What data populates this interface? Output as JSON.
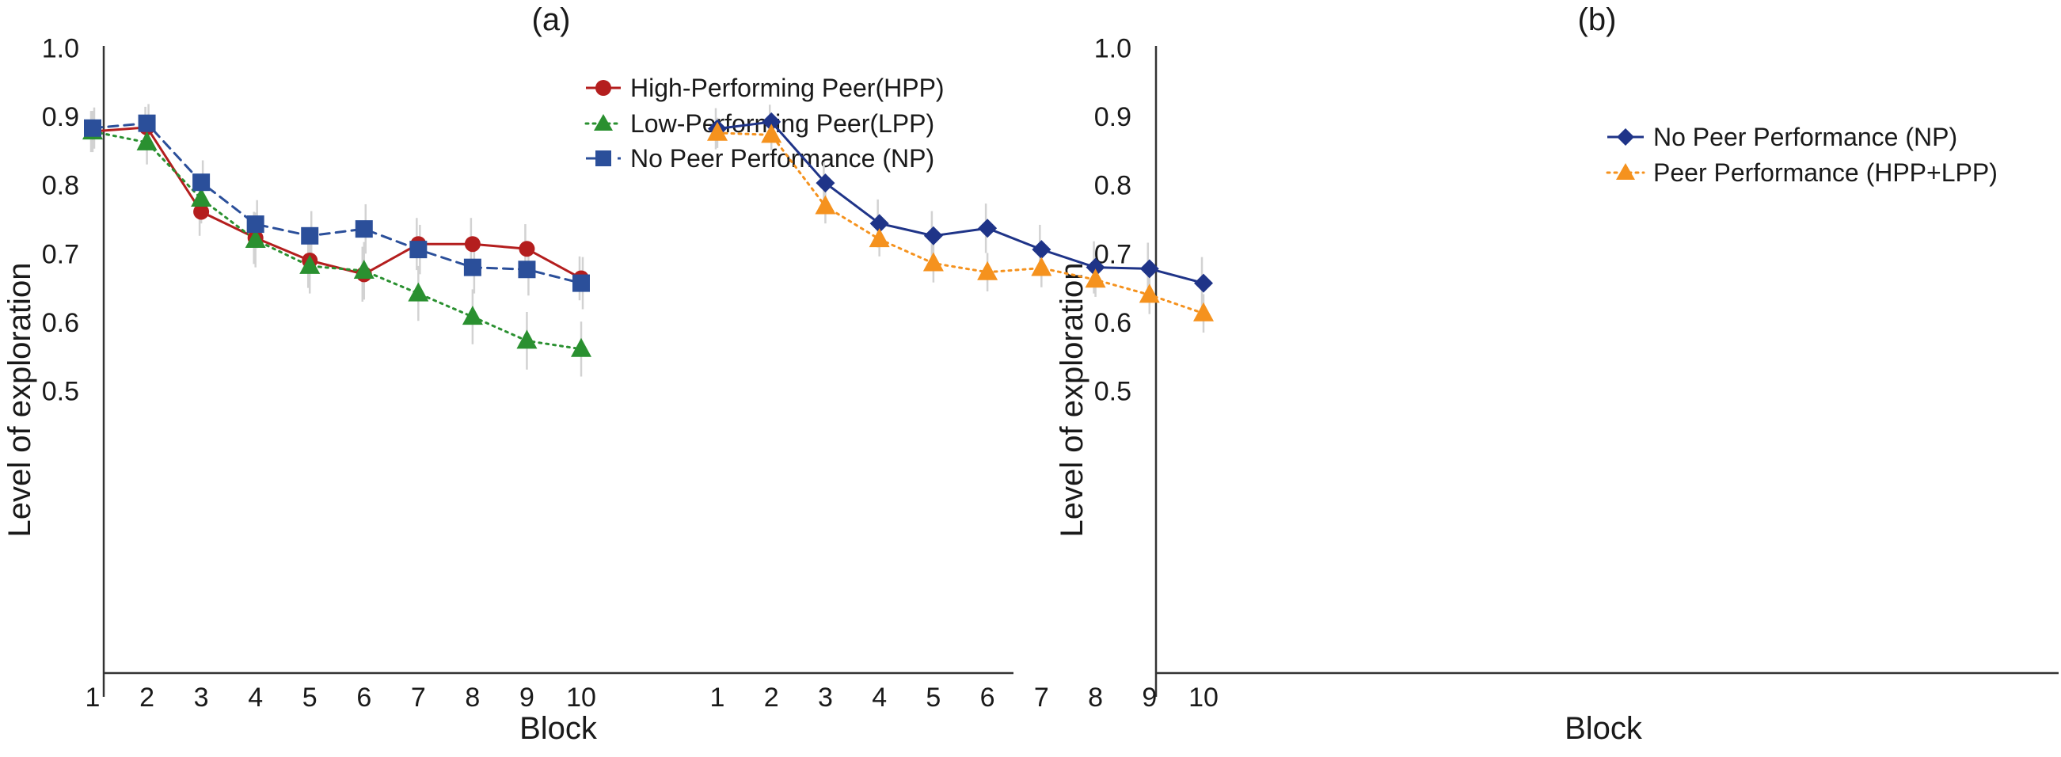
{
  "chart_data": [
    {
      "type": "line",
      "title": "(a)",
      "xlabel": "Block",
      "ylabel": "Level of exploration",
      "x": [
        1,
        2,
        3,
        4,
        5,
        6,
        7,
        8,
        9,
        10
      ],
      "x_tick_labels": [
        "1",
        "2",
        "3",
        "4",
        "5",
        "6",
        "7",
        "8",
        "9",
        "10"
      ],
      "ylim": [
        0.48,
        1.03
      ],
      "y_ticks": [
        0.5,
        0.6,
        0.7,
        0.8,
        0.9,
        1.0
      ],
      "y_tick_labels": [
        "0.5",
        "0.6",
        "0.7",
        "0.8",
        "0.9",
        "1.0"
      ],
      "grid": false,
      "legend_position": "top-right",
      "error_bars": true,
      "series": [
        {
          "name": "High-Performing Peer(HPP)",
          "color": "#b41e1e",
          "marker": "circle",
          "line_style": "solid",
          "values": [
            0.878,
            0.884,
            0.761,
            0.723,
            0.69,
            0.67,
            0.714,
            0.714,
            0.707,
            0.664
          ],
          "error": [
            0.03,
            0.03,
            0.035,
            0.038,
            0.04,
            0.04,
            0.038,
            0.038,
            0.036,
            0.032
          ]
        },
        {
          "name": "Low-Performing Peer(LPP)",
          "color": "#2a9030",
          "marker": "triangle",
          "line_style": "dotted",
          "values": [
            0.878,
            0.862,
            0.78,
            0.72,
            0.682,
            0.675,
            0.642,
            0.608,
            0.573,
            0.561
          ],
          "error": [
            0.03,
            0.032,
            0.036,
            0.04,
            0.04,
            0.042,
            0.04,
            0.04,
            0.042,
            0.04
          ]
        },
        {
          "name": "No Peer Performance (NP)",
          "color": "#2b4f9a",
          "marker": "square",
          "line_style": "dashed",
          "values": [
            0.883,
            0.89,
            0.804,
            0.743,
            0.726,
            0.736,
            0.706,
            0.68,
            0.677,
            0.657
          ],
          "error": [
            0.03,
            0.028,
            0.032,
            0.035,
            0.036,
            0.036,
            0.036,
            0.038,
            0.038,
            0.038
          ]
        }
      ]
    },
    {
      "type": "line",
      "title": "(b)",
      "xlabel": "Block",
      "ylabel": "Level of exploration",
      "x": [
        1,
        2,
        3,
        4,
        5,
        6,
        7,
        8,
        9,
        10
      ],
      "x_tick_labels": [
        "1",
        "2",
        "3",
        "4",
        "5",
        "6",
        "7",
        "8",
        "9",
        "10"
      ],
      "ylim": [
        0.48,
        1.03
      ],
      "y_ticks": [
        0.5,
        0.6,
        0.7,
        0.8,
        0.9,
        1.0
      ],
      "y_tick_labels": [
        "0.5",
        "0.6",
        "0.7",
        "0.8",
        "0.9",
        "1.0"
      ],
      "grid": false,
      "legend_position": "top-right",
      "error_bars": true,
      "series": [
        {
          "name": "No Peer Performance (NP)",
          "color": "#1f3488",
          "marker": "circle",
          "line_style": "solid",
          "values": [
            0.882,
            0.892,
            0.803,
            0.744,
            0.726,
            0.737,
            0.706,
            0.68,
            0.678,
            0.657
          ],
          "error": [
            0.03,
            0.025,
            0.03,
            0.035,
            0.036,
            0.036,
            0.036,
            0.038,
            0.038,
            0.038
          ]
        },
        {
          "name": "Peer Performance (HPP+LPP)",
          "color": "#f5921e",
          "marker": "triangle",
          "line_style": "dotted",
          "values": [
            0.876,
            0.873,
            0.769,
            0.721,
            0.686,
            0.673,
            0.679,
            0.662,
            0.64,
            0.613
          ],
          "error": [
            0.022,
            0.022,
            0.025,
            0.025,
            0.028,
            0.028,
            0.028,
            0.025,
            0.028,
            0.028
          ]
        }
      ]
    }
  ]
}
